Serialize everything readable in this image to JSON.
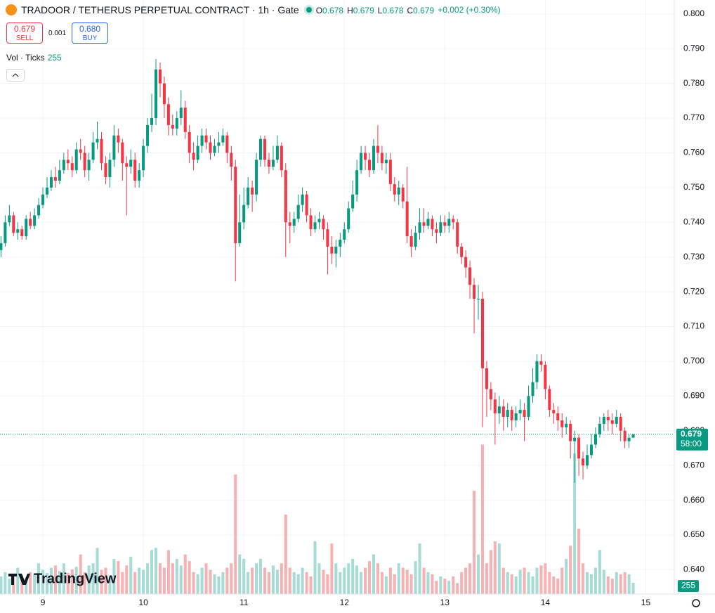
{
  "chart_data": {
    "type": "candlestick",
    "title": "TRADOOR / TETHERUS PERPETUAL CONTRACT · 1h · Gate",
    "legend_items": [
      {
        "label": "O",
        "value": "0.678"
      },
      {
        "label": "H",
        "value": "0.679"
      },
      {
        "label": "L",
        "value": "0.678"
      },
      {
        "label": "C",
        "value": "0.679"
      }
    ],
    "change": "+0.002 (+0.30%)",
    "sell_price": "0.679",
    "sell_label": "SELL",
    "spread": "0.001",
    "buy_price": "0.680",
    "buy_label": "BUY",
    "volume_title": "Vol · Ticks",
    "countdown": "58:00",
    "logo": "TradingView",
    "open": [
      0.732,
      0.734,
      0.74,
      0.742,
      0.737,
      0.738,
      0.736,
      0.741,
      0.739,
      0.742,
      0.745,
      0.748,
      0.75,
      0.753,
      0.752,
      0.755,
      0.758,
      0.757,
      0.755,
      0.761,
      0.76,
      0.755,
      0.758,
      0.763,
      0.764,
      0.757,
      0.753,
      0.758,
      0.765,
      0.763,
      0.757,
      0.756,
      0.758,
      0.752,
      0.755,
      0.762,
      0.768,
      0.77,
      0.784,
      0.78,
      0.774,
      0.768,
      0.767,
      0.77,
      0.773,
      0.766,
      0.76,
      0.758,
      0.762,
      0.765,
      0.763,
      0.76,
      0.762,
      0.763,
      0.765,
      0.76,
      0.756,
      0.734,
      0.74,
      0.745,
      0.75,
      0.748,
      0.758,
      0.764,
      0.758,
      0.756,
      0.758,
      0.762,
      0.755,
      0.74,
      0.739,
      0.741,
      0.745,
      0.748,
      0.742,
      0.738,
      0.74,
      0.741,
      0.738,
      0.733,
      0.731,
      0.733,
      0.735,
      0.738,
      0.744,
      0.748,
      0.755,
      0.76,
      0.758,
      0.755,
      0.762,
      0.76,
      0.757,
      0.758,
      0.751,
      0.748,
      0.75,
      0.746,
      0.736,
      0.733,
      0.737,
      0.74,
      0.739,
      0.741,
      0.738,
      0.737,
      0.74,
      0.739,
      0.741,
      0.74,
      0.733,
      0.73,
      0.727,
      0.722,
      0.718,
      0.718,
      0.698,
      0.692,
      0.689,
      0.685,
      0.687,
      0.684,
      0.686,
      0.683,
      0.685,
      0.686,
      0.684,
      0.69,
      0.694,
      0.7,
      0.699,
      0.692,
      0.686,
      0.685,
      0.683,
      0.681,
      0.682,
      0.677,
      0.678,
      0.672,
      0.67,
      0.673,
      0.676,
      0.679,
      0.682,
      0.684,
      0.683,
      0.682,
      0.684,
      0.68,
      0.677,
      0.678
    ],
    "high": [
      0.736,
      0.742,
      0.745,
      0.743,
      0.74,
      0.739,
      0.742,
      0.743,
      0.744,
      0.747,
      0.75,
      0.753,
      0.755,
      0.756,
      0.758,
      0.76,
      0.761,
      0.759,
      0.763,
      0.764,
      0.762,
      0.76,
      0.766,
      0.769,
      0.766,
      0.759,
      0.76,
      0.768,
      0.767,
      0.764,
      0.759,
      0.761,
      0.76,
      0.757,
      0.764,
      0.77,
      0.777,
      0.787,
      0.786,
      0.782,
      0.776,
      0.771,
      0.772,
      0.778,
      0.775,
      0.768,
      0.763,
      0.765,
      0.767,
      0.767,
      0.765,
      0.764,
      0.766,
      0.767,
      0.766,
      0.762,
      0.758,
      0.748,
      0.75,
      0.753,
      0.752,
      0.76,
      0.765,
      0.765,
      0.76,
      0.762,
      0.765,
      0.763,
      0.757,
      0.743,
      0.743,
      0.748,
      0.75,
      0.749,
      0.744,
      0.742,
      0.743,
      0.742,
      0.74,
      0.736,
      0.735,
      0.737,
      0.74,
      0.746,
      0.752,
      0.758,
      0.762,
      0.762,
      0.76,
      0.764,
      0.768,
      0.762,
      0.76,
      0.76,
      0.753,
      0.752,
      0.751,
      0.756,
      0.738,
      0.739,
      0.744,
      0.744,
      0.743,
      0.742,
      0.74,
      0.742,
      0.742,
      0.743,
      0.742,
      0.741,
      0.734,
      0.732,
      0.729,
      0.724,
      0.722,
      0.72,
      0.7,
      0.694,
      0.691,
      0.69,
      0.689,
      0.688,
      0.687,
      0.687,
      0.689,
      0.688,
      0.693,
      0.698,
      0.702,
      0.702,
      0.7,
      0.693,
      0.688,
      0.687,
      0.685,
      0.684,
      0.683,
      0.68,
      0.679,
      0.674,
      0.676,
      0.679,
      0.681,
      0.684,
      0.685,
      0.686,
      0.685,
      0.686,
      0.685,
      0.681,
      0.679,
      0.679
    ],
    "low": [
      0.73,
      0.733,
      0.739,
      0.736,
      0.735,
      0.735,
      0.735,
      0.738,
      0.738,
      0.741,
      0.744,
      0.747,
      0.749,
      0.75,
      0.751,
      0.754,
      0.755,
      0.753,
      0.754,
      0.758,
      0.753,
      0.752,
      0.757,
      0.761,
      0.755,
      0.751,
      0.75,
      0.756,
      0.76,
      0.752,
      0.742,
      0.754,
      0.75,
      0.75,
      0.753,
      0.76,
      0.766,
      0.768,
      0.776,
      0.77,
      0.765,
      0.765,
      0.765,
      0.768,
      0.764,
      0.757,
      0.755,
      0.757,
      0.76,
      0.761,
      0.758,
      0.759,
      0.76,
      0.762,
      0.757,
      0.752,
      0.723,
      0.733,
      0.738,
      0.744,
      0.743,
      0.746,
      0.756,
      0.756,
      0.754,
      0.755,
      0.757,
      0.753,
      0.73,
      0.734,
      0.737,
      0.74,
      0.743,
      0.74,
      0.736,
      0.737,
      0.738,
      0.735,
      0.725,
      0.728,
      0.727,
      0.73,
      0.734,
      0.737,
      0.743,
      0.746,
      0.754,
      0.755,
      0.753,
      0.754,
      0.757,
      0.755,
      0.754,
      0.749,
      0.746,
      0.745,
      0.744,
      0.734,
      0.73,
      0.732,
      0.735,
      0.737,
      0.738,
      0.736,
      0.734,
      0.736,
      0.737,
      0.737,
      0.738,
      0.731,
      0.728,
      0.724,
      0.718,
      0.708,
      0.712,
      0.681,
      0.684,
      0.686,
      0.676,
      0.682,
      0.68,
      0.681,
      0.68,
      0.681,
      0.683,
      0.677,
      0.683,
      0.688,
      0.692,
      0.697,
      0.689,
      0.684,
      0.682,
      0.68,
      0.678,
      0.679,
      0.672,
      0.665,
      0.667,
      0.666,
      0.669,
      0.672,
      0.675,
      0.678,
      0.68,
      0.68,
      0.679,
      0.681,
      0.677,
      0.675,
      0.675,
      0.678
    ],
    "close": [
      0.734,
      0.74,
      0.742,
      0.737,
      0.738,
      0.736,
      0.741,
      0.739,
      0.742,
      0.745,
      0.748,
      0.75,
      0.753,
      0.752,
      0.755,
      0.758,
      0.757,
      0.755,
      0.761,
      0.76,
      0.755,
      0.758,
      0.763,
      0.764,
      0.757,
      0.753,
      0.758,
      0.765,
      0.763,
      0.757,
      0.756,
      0.758,
      0.752,
      0.755,
      0.762,
      0.768,
      0.77,
      0.784,
      0.78,
      0.774,
      0.768,
      0.767,
      0.77,
      0.773,
      0.766,
      0.76,
      0.758,
      0.762,
      0.765,
      0.763,
      0.76,
      0.762,
      0.763,
      0.765,
      0.76,
      0.756,
      0.734,
      0.74,
      0.745,
      0.75,
      0.748,
      0.758,
      0.764,
      0.758,
      0.756,
      0.758,
      0.762,
      0.755,
      0.74,
      0.739,
      0.741,
      0.745,
      0.748,
      0.742,
      0.738,
      0.74,
      0.741,
      0.738,
      0.733,
      0.731,
      0.733,
      0.735,
      0.738,
      0.744,
      0.748,
      0.755,
      0.76,
      0.758,
      0.755,
      0.762,
      0.76,
      0.757,
      0.758,
      0.751,
      0.748,
      0.75,
      0.746,
      0.736,
      0.733,
      0.737,
      0.74,
      0.739,
      0.741,
      0.738,
      0.737,
      0.74,
      0.739,
      0.741,
      0.74,
      0.733,
      0.73,
      0.727,
      0.722,
      0.718,
      0.718,
      0.698,
      0.692,
      0.689,
      0.685,
      0.687,
      0.684,
      0.686,
      0.683,
      0.685,
      0.686,
      0.684,
      0.69,
      0.694,
      0.7,
      0.699,
      0.692,
      0.686,
      0.685,
      0.683,
      0.681,
      0.682,
      0.677,
      0.678,
      0.672,
      0.67,
      0.673,
      0.676,
      0.679,
      0.682,
      0.684,
      0.683,
      0.682,
      0.684,
      0.68,
      0.677,
      0.678,
      0.679
    ],
    "volume": [
      400,
      500,
      350,
      450,
      600,
      420,
      380,
      500,
      450,
      700,
      550,
      480,
      600,
      650,
      520,
      700,
      480,
      560,
      620,
      900,
      500,
      650,
      700,
      1050,
      550,
      600,
      400,
      800,
      750,
      500,
      650,
      850,
      500,
      600,
      550,
      700,
      1000,
      1050,
      700,
      600,
      1000,
      700,
      800,
      650,
      900,
      750,
      500,
      450,
      600,
      700,
      550,
      450,
      400,
      500,
      600,
      700,
      2720,
      900,
      800,
      500,
      600,
      700,
      800,
      600,
      500,
      650,
      550,
      700,
      1810,
      600,
      500,
      450,
      600,
      500,
      400,
      1200,
      700,
      550,
      450,
      1150,
      700,
      500,
      600,
      700,
      800,
      650,
      500,
      600,
      750,
      900,
      700,
      500,
      400,
      600,
      450,
      700,
      600,
      550,
      450,
      750,
      1150,
      600,
      500,
      450,
      300,
      400,
      350,
      300,
      400,
      250,
      500,
      600,
      700,
      2350,
      900,
      3400,
      700,
      1000,
      1200,
      1150,
      600,
      500,
      450,
      400,
      550,
      600,
      500,
      400,
      600,
      650,
      700,
      500,
      400,
      350,
      600,
      800,
      1100,
      3200,
      1490,
      700,
      500,
      450,
      600,
      1000,
      550,
      400,
      350,
      500,
      450,
      500,
      450,
      255
    ],
    "xlim": [
      -0.24,
      160.8
    ],
    "xticks": [
      {
        "value": 10,
        "label": "9"
      },
      {
        "value": 34,
        "label": "10"
      },
      {
        "value": 58,
        "label": "11"
      },
      {
        "value": 82,
        "label": "12"
      },
      {
        "value": 106,
        "label": "13"
      },
      {
        "value": 130,
        "label": "14"
      },
      {
        "value": 154,
        "label": "15"
      }
    ],
    "ylim": [
      0.633,
      0.804
    ],
    "yticks": [
      {
        "value": 0.64,
        "label": "0.640"
      },
      {
        "value": 0.65,
        "label": "0.650"
      },
      {
        "value": 0.66,
        "label": "0.660"
      },
      {
        "value": 0.67,
        "label": "0.670"
      },
      {
        "value": 0.68,
        "label": "0.680"
      },
      {
        "value": 0.69,
        "label": "0.690"
      },
      {
        "value": 0.7,
        "label": "0.700"
      },
      {
        "value": 0.71,
        "label": "0.710"
      },
      {
        "value": 0.72,
        "label": "0.720"
      },
      {
        "value": 0.73,
        "label": "0.730"
      },
      {
        "value": 0.74,
        "label": "0.740"
      },
      {
        "value": 0.75,
        "label": "0.750"
      },
      {
        "value": 0.76,
        "label": "0.760"
      },
      {
        "value": 0.77,
        "label": "0.770"
      },
      {
        "value": 0.78,
        "label": "0.780"
      },
      {
        "value": 0.79,
        "label": "0.790"
      },
      {
        "value": 0.8,
        "label": "0.800"
      }
    ],
    "vlim": [
      0,
      4000
    ],
    "grid": true,
    "up_color": "#089981",
    "down_color": "#f23645",
    "up_volume_color": "#a6dcd5",
    "down_volume_color": "#f6b1b3"
  }
}
